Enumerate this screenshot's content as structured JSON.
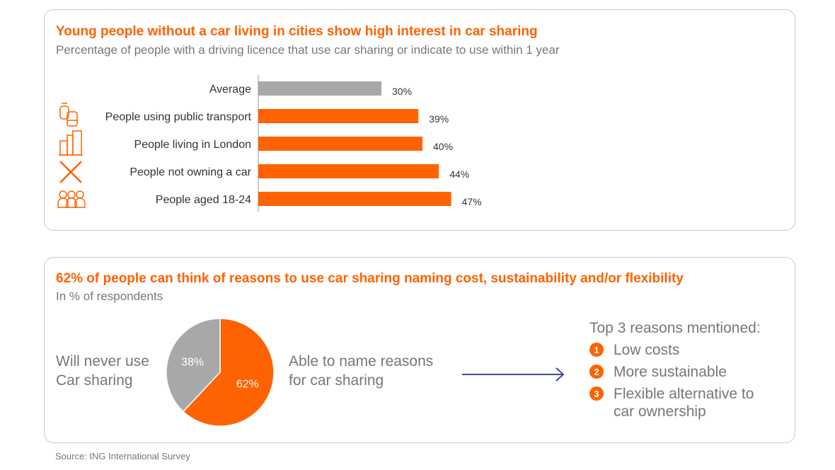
{
  "chart_data": [
    {
      "type": "bar",
      "orientation": "horizontal",
      "title": "Young people without a car living in cities show high interest in car sharing",
      "subtitle": "Percentage of people with a driving licence that use car sharing or indicate to use within 1 year",
      "categories": [
        "Average",
        "People using public transport",
        "People living in London",
        "People not owning a car",
        "People aged 18-24"
      ],
      "values": [
        30,
        39,
        40,
        44,
        47
      ],
      "labels": [
        "30%",
        "39%",
        "40%",
        "44%",
        "47%"
      ],
      "icons": [
        "",
        "tram-bus-icon",
        "buildings-icon",
        "cross-icon",
        "group-icon"
      ],
      "colors": [
        "#a7a8aa",
        "#ff6200",
        "#ff6200",
        "#ff6200",
        "#ff6200"
      ],
      "grid": false
    },
    {
      "type": "pie",
      "title": "62% of people can think of reasons to use car sharing naming cost, sustainability and/or flexibility",
      "subtitle": "In % of respondents",
      "slices": [
        {
          "label": "Able to name reasons for car sharing",
          "value": 62,
          "text": "62%",
          "color": "#ff6200"
        },
        {
          "label": "Will never use Car sharing",
          "value": 38,
          "text": "38%",
          "color": "#a7a8aa"
        }
      ]
    }
  ],
  "left_label": [
    "Will never use",
    "Car sharing"
  ],
  "right_label": [
    "Able to name reasons",
    "for car sharing"
  ],
  "reasons_title": "Top 3 reasons mentioned:",
  "reasons": [
    {
      "n": "1",
      "lines": [
        "Low costs"
      ]
    },
    {
      "n": "2",
      "lines": [
        "More sustainable"
      ]
    },
    {
      "n": "3",
      "lines": [
        "Flexible alternative to",
        "car ownership"
      ]
    }
  ],
  "source": "Source: ING International Survey"
}
